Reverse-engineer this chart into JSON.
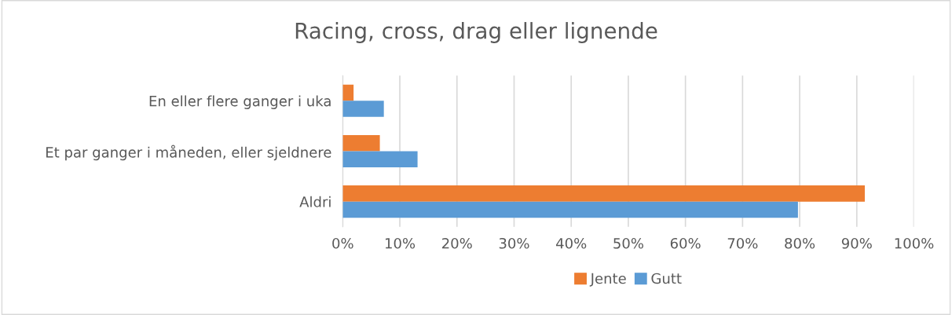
{
  "chart_data": {
    "type": "bar",
    "orientation": "horizontal",
    "title": "Racing, cross, drag eller lignende",
    "categories": [
      "En eller flere ganger i uka",
      "Et par ganger i måneden, eller sjeldnere",
      "Aldri"
    ],
    "series": [
      {
        "name": "Jente",
        "color": "#ed7d31",
        "values": [
          1.9,
          6.5,
          91.4
        ]
      },
      {
        "name": "Gutt",
        "color": "#5b9bd5",
        "values": [
          7.2,
          13.1,
          79.7
        ]
      }
    ],
    "xlim": [
      0,
      100
    ],
    "xticks": [
      {
        "value": 0,
        "label": "0%"
      },
      {
        "value": 10,
        "label": "10%"
      },
      {
        "value": 20,
        "label": "20%"
      },
      {
        "value": 30,
        "label": "30%"
      },
      {
        "value": 40,
        "label": "40%"
      },
      {
        "value": 50,
        "label": "50%"
      },
      {
        "value": 60,
        "label": "60%"
      },
      {
        "value": 70,
        "label": "70%"
      },
      {
        "value": 80,
        "label": "80%"
      },
      {
        "value": 90,
        "label": "90%"
      },
      {
        "value": 100,
        "label": "100%"
      }
    ],
    "grid": "x",
    "legend": "bottom"
  }
}
